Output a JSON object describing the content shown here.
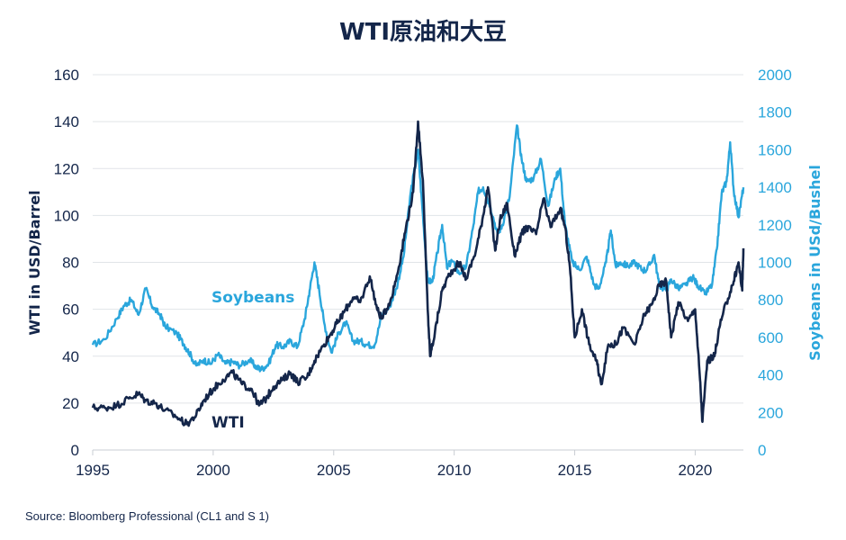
{
  "chart_data": {
    "type": "line",
    "title": "WTI原油和大豆",
    "source": "Source: Bloomberg Professional  (CL1 and S 1)",
    "xlim": [
      1995,
      2022
    ],
    "x_ticks": [
      "1995",
      "2000",
      "2005",
      "2010",
      "2015",
      "2020"
    ],
    "y_left": {
      "label": "WTI in USD/Barrel",
      "lim": [
        0,
        160
      ],
      "ticks": [
        "0",
        "20",
        "40",
        "60",
        "80",
        "100",
        "120",
        "140",
        "160"
      ]
    },
    "y_right": {
      "label": "Soybeans in USd/Bushel",
      "lim": [
        0,
        2000
      ],
      "ticks": [
        "0",
        "200",
        "400",
        "600",
        "800",
        "1000",
        "1200",
        "1400",
        "1600",
        "1800",
        "2000"
      ]
    },
    "grid": true,
    "series": [
      {
        "name": "Soybeans",
        "axis": "right",
        "color": "#2aa6dc",
        "points": [
          [
            1995.0,
            560
          ],
          [
            1995.5,
            590
          ],
          [
            1996.0,
            700
          ],
          [
            1996.3,
            770
          ],
          [
            1996.6,
            800
          ],
          [
            1996.9,
            720
          ],
          [
            1997.2,
            860
          ],
          [
            1997.5,
            760
          ],
          [
            1997.8,
            720
          ],
          [
            1998.0,
            660
          ],
          [
            1998.5,
            620
          ],
          [
            1998.8,
            560
          ],
          [
            1999.0,
            520
          ],
          [
            1999.3,
            450
          ],
          [
            1999.6,
            480
          ],
          [
            1999.9,
            460
          ],
          [
            2000.2,
            510
          ],
          [
            2000.5,
            460
          ],
          [
            2000.8,
            470
          ],
          [
            2001.1,
            450
          ],
          [
            2001.5,
            480
          ],
          [
            2001.8,
            440
          ],
          [
            2002.0,
            430
          ],
          [
            2002.3,
            460
          ],
          [
            2002.6,
            560
          ],
          [
            2002.9,
            550
          ],
          [
            2003.2,
            580
          ],
          [
            2003.5,
            550
          ],
          [
            2003.8,
            700
          ],
          [
            2004.0,
            850
          ],
          [
            2004.2,
            1000
          ],
          [
            2004.4,
            850
          ],
          [
            2004.6,
            680
          ],
          [
            2004.9,
            520
          ],
          [
            2005.2,
            620
          ],
          [
            2005.5,
            680
          ],
          [
            2005.8,
            580
          ],
          [
            2006.1,
            580
          ],
          [
            2006.4,
            560
          ],
          [
            2006.7,
            560
          ],
          [
            2007.0,
            720
          ],
          [
            2007.3,
            760
          ],
          [
            2007.6,
            860
          ],
          [
            2007.9,
            1030
          ],
          [
            2008.2,
            1380
          ],
          [
            2008.5,
            1600
          ],
          [
            2008.7,
            1250
          ],
          [
            2008.9,
            900
          ],
          [
            2009.1,
            900
          ],
          [
            2009.3,
            1050
          ],
          [
            2009.5,
            1200
          ],
          [
            2009.7,
            970
          ],
          [
            2009.9,
            1010
          ],
          [
            2010.2,
            940
          ],
          [
            2010.5,
            980
          ],
          [
            2010.8,
            1200
          ],
          [
            2011.0,
            1380
          ],
          [
            2011.2,
            1400
          ],
          [
            2011.5,
            1300
          ],
          [
            2011.8,
            1150
          ],
          [
            2012.0,
            1200
          ],
          [
            2012.3,
            1350
          ],
          [
            2012.6,
            1730
          ],
          [
            2012.8,
            1550
          ],
          [
            2013.0,
            1430
          ],
          [
            2013.3,
            1450
          ],
          [
            2013.6,
            1550
          ],
          [
            2013.9,
            1300
          ],
          [
            2014.2,
            1450
          ],
          [
            2014.4,
            1500
          ],
          [
            2014.6,
            1200
          ],
          [
            2014.9,
            1000
          ],
          [
            2015.2,
            960
          ],
          [
            2015.5,
            1030
          ],
          [
            2015.8,
            880
          ],
          [
            2016.0,
            860
          ],
          [
            2016.3,
            1000
          ],
          [
            2016.5,
            1170
          ],
          [
            2016.7,
            980
          ],
          [
            2016.9,
            1000
          ],
          [
            2017.2,
            980
          ],
          [
            2017.5,
            1000
          ],
          [
            2017.8,
            960
          ],
          [
            2018.0,
            960
          ],
          [
            2018.3,
            1040
          ],
          [
            2018.5,
            880
          ],
          [
            2018.8,
            850
          ],
          [
            2019.0,
            910
          ],
          [
            2019.3,
            860
          ],
          [
            2019.6,
            880
          ],
          [
            2019.9,
            920
          ],
          [
            2020.1,
            880
          ],
          [
            2020.4,
            830
          ],
          [
            2020.7,
            880
          ],
          [
            2020.9,
            1070
          ],
          [
            2021.1,
            1370
          ],
          [
            2021.3,
            1430
          ],
          [
            2021.45,
            1640
          ],
          [
            2021.6,
            1380
          ],
          [
            2021.8,
            1240
          ],
          [
            2022.0,
            1400
          ]
        ]
      },
      {
        "name": "WTI",
        "axis": "left",
        "color": "#14264a",
        "points": [
          [
            1995.0,
            18
          ],
          [
            1995.5,
            18
          ],
          [
            1996.0,
            19
          ],
          [
            1996.5,
            22
          ],
          [
            1996.9,
            24
          ],
          [
            1997.2,
            21
          ],
          [
            1997.6,
            20
          ],
          [
            1998.0,
            17
          ],
          [
            1998.5,
            14
          ],
          [
            1998.9,
            11
          ],
          [
            1999.3,
            15
          ],
          [
            1999.6,
            21
          ],
          [
            2000.0,
            26
          ],
          [
            2000.4,
            30
          ],
          [
            2000.8,
            33
          ],
          [
            2001.2,
            28
          ],
          [
            2001.6,
            26
          ],
          [
            2001.9,
            19
          ],
          [
            2002.2,
            22
          ],
          [
            2002.5,
            27
          ],
          [
            2002.9,
            30
          ],
          [
            2003.2,
            33
          ],
          [
            2003.5,
            29
          ],
          [
            2003.9,
            31
          ],
          [
            2004.2,
            38
          ],
          [
            2004.6,
            45
          ],
          [
            2004.9,
            50
          ],
          [
            2005.2,
            55
          ],
          [
            2005.5,
            60
          ],
          [
            2005.8,
            65
          ],
          [
            2006.1,
            63
          ],
          [
            2006.5,
            74
          ],
          [
            2006.8,
            60
          ],
          [
            2007.0,
            56
          ],
          [
            2007.4,
            65
          ],
          [
            2007.7,
            78
          ],
          [
            2008.0,
            95
          ],
          [
            2008.3,
            110
          ],
          [
            2008.5,
            140
          ],
          [
            2008.7,
            115
          ],
          [
            2008.9,
            60
          ],
          [
            2009.0,
            40
          ],
          [
            2009.2,
            50
          ],
          [
            2009.5,
            68
          ],
          [
            2009.8,
            75
          ],
          [
            2010.2,
            80
          ],
          [
            2010.5,
            73
          ],
          [
            2010.9,
            85
          ],
          [
            2011.2,
            100
          ],
          [
            2011.4,
            112
          ],
          [
            2011.7,
            85
          ],
          [
            2011.9,
            98
          ],
          [
            2012.2,
            105
          ],
          [
            2012.5,
            83
          ],
          [
            2012.8,
            92
          ],
          [
            2013.0,
            95
          ],
          [
            2013.4,
            92
          ],
          [
            2013.7,
            107
          ],
          [
            2014.0,
            95
          ],
          [
            2014.4,
            103
          ],
          [
            2014.6,
            95
          ],
          [
            2014.8,
            78
          ],
          [
            2015.0,
            48
          ],
          [
            2015.3,
            60
          ],
          [
            2015.6,
            45
          ],
          [
            2015.9,
            38
          ],
          [
            2016.1,
            28
          ],
          [
            2016.4,
            45
          ],
          [
            2016.7,
            45
          ],
          [
            2017.0,
            52
          ],
          [
            2017.5,
            45
          ],
          [
            2017.9,
            58
          ],
          [
            2018.2,
            62
          ],
          [
            2018.5,
            70
          ],
          [
            2018.8,
            72
          ],
          [
            2019.0,
            48
          ],
          [
            2019.3,
            63
          ],
          [
            2019.7,
            55
          ],
          [
            2020.0,
            60
          ],
          [
            2020.2,
            30
          ],
          [
            2020.3,
            12
          ],
          [
            2020.5,
            38
          ],
          [
            2020.8,
            40
          ],
          [
            2021.0,
            52
          ],
          [
            2021.3,
            63
          ],
          [
            2021.6,
            72
          ],
          [
            2021.8,
            80
          ],
          [
            2021.95,
            68
          ],
          [
            2022.0,
            86
          ]
        ]
      }
    ],
    "annotations": [
      {
        "text": "Soybeans",
        "series": "Soybeans"
      },
      {
        "text": "WTI",
        "series": "WTI"
      }
    ]
  }
}
